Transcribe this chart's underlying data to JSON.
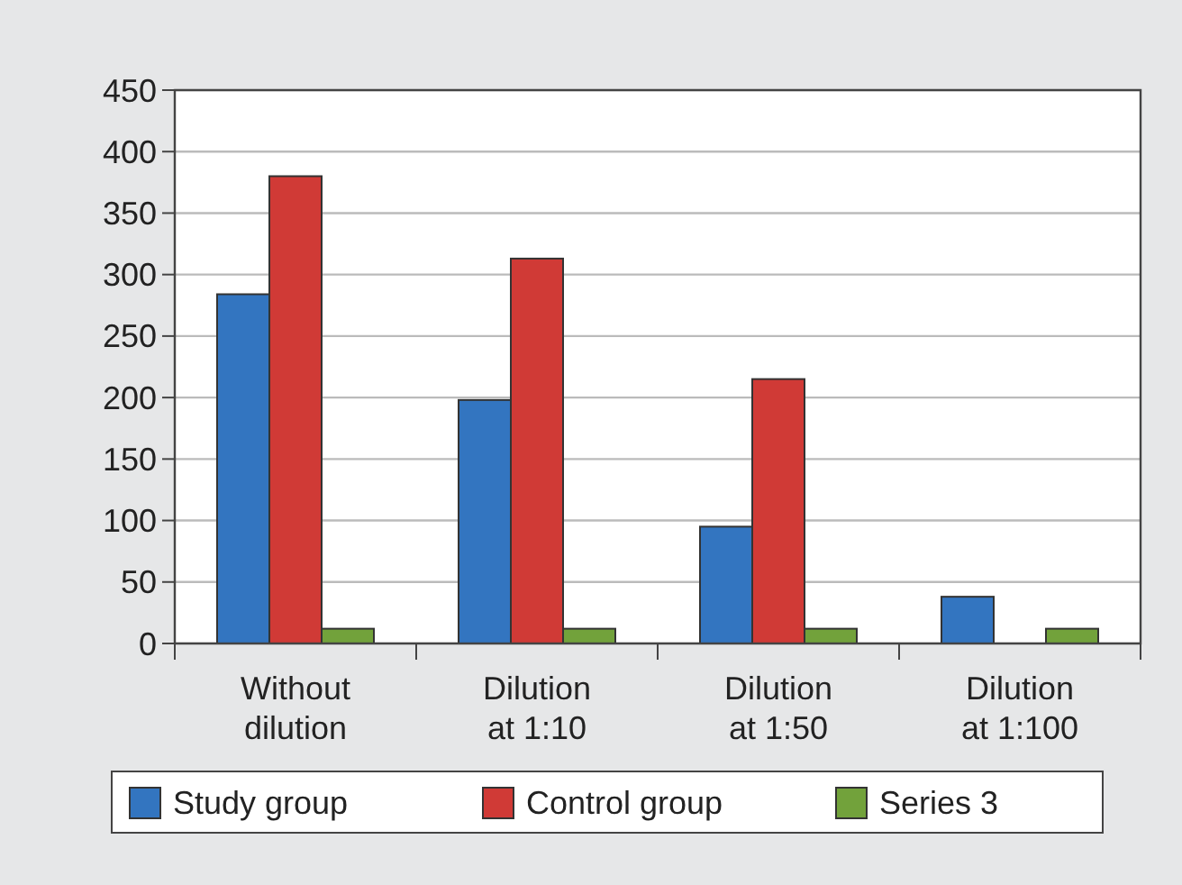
{
  "chart_data": {
    "type": "bar",
    "categories": [
      "Without dilution",
      "Dilution at 1:10",
      "Dilution at 1:50",
      "Dilution at 1:100"
    ],
    "series": [
      {
        "name": "Study group",
        "color": "#3375c0",
        "values": [
          284,
          198,
          95,
          38
        ]
      },
      {
        "name": "Control group",
        "color": "#d03a36",
        "values": [
          380,
          313,
          215,
          0
        ]
      },
      {
        "name": "Series 3",
        "color": "#72a23b",
        "values": [
          12,
          12,
          12,
          12
        ]
      }
    ],
    "ylim": [
      0,
      450
    ],
    "yticks": [
      0,
      50,
      100,
      150,
      200,
      250,
      300,
      350,
      400,
      450
    ],
    "grid": "y",
    "legend": "bottom"
  }
}
